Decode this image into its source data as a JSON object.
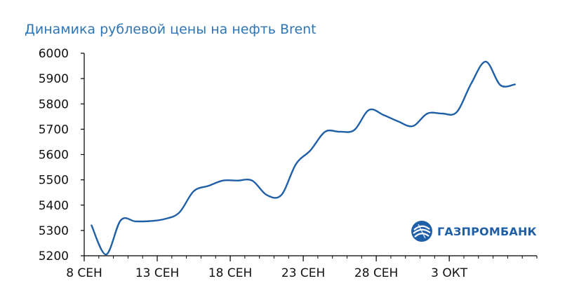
{
  "colors": {
    "line": "#1f5fa8",
    "title": "#2f75b5",
    "axis": "#000000",
    "logo": "#1f5fa8"
  },
  "logo": {
    "text": "ГАЗПРОМБАНК",
    "icon": "gazprombank-logo-icon"
  },
  "chart_data": {
    "type": "line",
    "title": "Динамика рублевой цены на нефть Brent",
    "xlabel": "",
    "ylabel": "",
    "ylim": [
      5200,
      6000
    ],
    "yticks": [
      5200,
      5300,
      5400,
      5500,
      5600,
      5700,
      5800,
      5900,
      6000
    ],
    "xlim": [
      0,
      31
    ],
    "xticks": [
      {
        "x": 0,
        "label": "8 СЕН"
      },
      {
        "x": 5,
        "label": "13 СЕН"
      },
      {
        "x": 10,
        "label": "18 СЕН"
      },
      {
        "x": 15,
        "label": "23 СЕН"
      },
      {
        "x": 20,
        "label": "28 СЕН"
      },
      {
        "x": 25,
        "label": "3 ОКТ"
      }
    ],
    "grid": false,
    "series": [
      {
        "values": [
          {
            "x": 0.5,
            "y": 5320
          },
          {
            "x": 1.5,
            "y": 5205
          },
          {
            "x": 2.5,
            "y": 5340
          },
          {
            "x": 3.5,
            "y": 5336
          },
          {
            "x": 4.5,
            "y": 5337
          },
          {
            "x": 5.5,
            "y": 5345
          },
          {
            "x": 6.5,
            "y": 5370
          },
          {
            "x": 7.5,
            "y": 5455
          },
          {
            "x": 8.5,
            "y": 5476
          },
          {
            "x": 9.5,
            "y": 5497
          },
          {
            "x": 10.5,
            "y": 5497
          },
          {
            "x": 11.5,
            "y": 5497
          },
          {
            "x": 12.5,
            "y": 5440
          },
          {
            "x": 13.5,
            "y": 5440
          },
          {
            "x": 14.5,
            "y": 5562
          },
          {
            "x": 15.5,
            "y": 5617
          },
          {
            "x": 16.5,
            "y": 5690
          },
          {
            "x": 17.5,
            "y": 5690
          },
          {
            "x": 18.5,
            "y": 5697
          },
          {
            "x": 19.5,
            "y": 5776
          },
          {
            "x": 20.5,
            "y": 5756
          },
          {
            "x": 21.5,
            "y": 5731
          },
          {
            "x": 22.5,
            "y": 5712
          },
          {
            "x": 23.5,
            "y": 5762
          },
          {
            "x": 24.5,
            "y": 5762
          },
          {
            "x": 25.5,
            "y": 5767
          },
          {
            "x": 26.5,
            "y": 5880
          },
          {
            "x": 27.5,
            "y": 5967
          },
          {
            "x": 28.5,
            "y": 5874
          },
          {
            "x": 29.5,
            "y": 5877
          }
        ]
      }
    ]
  }
}
